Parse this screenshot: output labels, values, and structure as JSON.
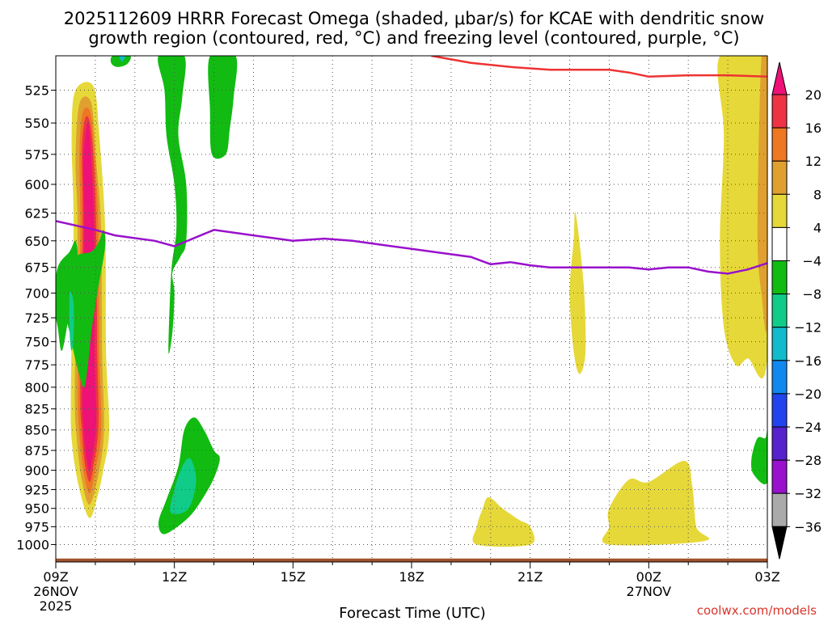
{
  "chart_data": {
    "type": "heatmap",
    "title_line1": "2025112609 HRRR Forecast Omega (shaded, μbar/s) for KCAE with dendritic snow",
    "title_line2": "growth region (contoured, red, °C) and freezing level (contoured, purple, °C)",
    "xlabel": "Forecast Time (UTC)",
    "credit": "coolwx.com/models",
    "x_range_hours": [
      0,
      18
    ],
    "x_ticks": [
      {
        "hour": 0,
        "label": "09Z",
        "label2": "26NOV",
        "label3": "2025"
      },
      {
        "hour": 3,
        "label": "12Z"
      },
      {
        "hour": 6,
        "label": "15Z"
      },
      {
        "hour": 9,
        "label": "18Z"
      },
      {
        "hour": 12,
        "label": "21Z"
      },
      {
        "hour": 15,
        "label": "00Z",
        "label2": "27NOV"
      },
      {
        "hour": 18,
        "label": "03Z"
      }
    ],
    "y_range_hpa": [
      1025,
      500
    ],
    "y_ticks": [
      "525",
      "550",
      "575",
      "600",
      "625",
      "650",
      "675",
      "700",
      "725",
      "750",
      "775",
      "800",
      "825",
      "850",
      "875",
      "900",
      "925",
      "950",
      "975",
      "1000"
    ],
    "colorbar": {
      "labels": [
        "20",
        "16",
        "12",
        "8",
        "4",
        "−4",
        "−8",
        "−12",
        "−16",
        "−20",
        "−24",
        "−28",
        "−32",
        "−36"
      ],
      "colors": [
        "#ee1177",
        "#ee3344",
        "#ee7722",
        "#e0a030",
        "#e6d838",
        "#ffffff",
        "#11bb11",
        "#11cc88",
        "#11bbcc",
        "#1188ee",
        "#2244ee",
        "#5522cc",
        "#9911cc",
        "#aaaaaa",
        "#000000"
      ]
    },
    "omega_shaded_regions": [
      {
        "level": 4,
        "color": "#e6d838",
        "points": [
          [
            0.5,
            525
          ],
          [
            0.95,
            522
          ],
          [
            1.1,
            560
          ],
          [
            1.25,
            640
          ],
          [
            1.27,
            760
          ],
          [
            1.35,
            850
          ],
          [
            1.2,
            900
          ],
          [
            1.05,
            935
          ],
          [
            0.85,
            963
          ],
          [
            0.6,
            925
          ],
          [
            0.42,
            870
          ],
          [
            0.38,
            810
          ],
          [
            0.45,
            640
          ],
          [
            0.4,
            560
          ]
        ]
      },
      {
        "level": 8,
        "color": "#e0a030",
        "points": [
          [
            0.6,
            535
          ],
          [
            0.9,
            535
          ],
          [
            1.02,
            580
          ],
          [
            1.15,
            640
          ],
          [
            1.17,
            760
          ],
          [
            1.22,
            850
          ],
          [
            1.08,
            905
          ],
          [
            0.85,
            945
          ],
          [
            0.65,
            910
          ],
          [
            0.53,
            860
          ],
          [
            0.48,
            800
          ],
          [
            0.55,
            640
          ],
          [
            0.5,
            580
          ]
        ]
      },
      {
        "level": 12,
        "color": "#ee7722",
        "points": [
          [
            0.68,
            542
          ],
          [
            0.88,
            542
          ],
          [
            0.98,
            575
          ],
          [
            1.08,
            640
          ],
          [
            1.1,
            760
          ],
          [
            1.15,
            850
          ],
          [
            1.0,
            900
          ],
          [
            0.85,
            930
          ],
          [
            0.7,
            900
          ],
          [
            0.6,
            855
          ],
          [
            0.56,
            800
          ],
          [
            0.62,
            640
          ],
          [
            0.6,
            575
          ]
        ]
      },
      {
        "level": 16,
        "color": "#ee3344",
        "points": [
          [
            0.73,
            548
          ],
          [
            0.85,
            548
          ],
          [
            0.95,
            575
          ],
          [
            1.02,
            640
          ],
          [
            1.05,
            760
          ],
          [
            1.08,
            845
          ],
          [
            0.95,
            895
          ],
          [
            0.85,
            915
          ],
          [
            0.73,
            890
          ],
          [
            0.66,
            850
          ],
          [
            0.62,
            800
          ],
          [
            0.68,
            640
          ],
          [
            0.66,
            575
          ]
        ]
      },
      {
        "level": 20,
        "color": "#ee1177",
        "points": [
          [
            0.78,
            553
          ],
          [
            0.84,
            553
          ],
          [
            0.9,
            580
          ],
          [
            0.97,
            640
          ],
          [
            0.98,
            760
          ],
          [
            1.02,
            840
          ],
          [
            0.92,
            885
          ],
          [
            0.85,
            900
          ],
          [
            0.76,
            880
          ],
          [
            0.7,
            845
          ],
          [
            0.67,
            800
          ],
          [
            0.72,
            640
          ],
          [
            0.7,
            580
          ]
        ]
      },
      {
        "level": -4,
        "color": "#11bb11",
        "points": [
          [
            -0.1,
            700
          ],
          [
            0.1,
            690
          ],
          [
            0.5,
            665
          ],
          [
            0.9,
            660
          ],
          [
            1.1,
            650
          ],
          [
            1.2,
            640
          ],
          [
            1.25,
            655
          ],
          [
            1.05,
            700
          ],
          [
            0.9,
            740
          ],
          [
            0.8,
            780
          ],
          [
            0.7,
            800
          ],
          [
            0.5,
            770
          ],
          [
            0.35,
            740
          ],
          [
            0.2,
            720
          ]
        ]
      },
      {
        "level": -4,
        "color": "#11bb11",
        "points": [
          [
            0.05,
            675
          ],
          [
            0.35,
            660
          ],
          [
            0.5,
            650
          ],
          [
            0.55,
            670
          ],
          [
            0.4,
            700
          ],
          [
            0.3,
            730
          ],
          [
            0.15,
            760
          ],
          [
            0.05,
            735
          ],
          [
            -0.05,
            710
          ]
        ]
      },
      {
        "level": -8,
        "color": "#11cc88",
        "points": [
          [
            0.35,
            700
          ],
          [
            0.45,
            710
          ],
          [
            0.45,
            745
          ],
          [
            0.4,
            760
          ],
          [
            0.35,
            740
          ]
        ]
      },
      {
        "level": -4,
        "color": "#11bb11",
        "points": [
          [
            1.45,
            500
          ],
          [
            1.88,
            500
          ],
          [
            1.8,
            506
          ],
          [
            1.55,
            508
          ],
          [
            1.4,
            505
          ]
        ]
      },
      {
        "level": -8,
        "color": "#11bbcc",
        "points": [
          [
            1.6,
            500
          ],
          [
            1.75,
            500
          ],
          [
            1.68,
            504
          ]
        ]
      },
      {
        "level": -4,
        "color": "#11bb11",
        "points": [
          [
            2.6,
            500
          ],
          [
            3.25,
            500
          ],
          [
            3.2,
            530
          ],
          [
            3.1,
            560
          ],
          [
            3.3,
            600
          ],
          [
            3.3,
            650
          ],
          [
            3.15,
            665
          ],
          [
            2.95,
            680
          ],
          [
            3.0,
            700
          ],
          [
            2.95,
            740
          ],
          [
            2.85,
            760
          ],
          [
            2.92,
            680
          ],
          [
            3.05,
            640
          ],
          [
            3.0,
            600
          ],
          [
            2.8,
            560
          ],
          [
            2.75,
            525
          ]
        ]
      },
      {
        "level": -4,
        "color": "#11bb11",
        "points": [
          [
            3.9,
            500
          ],
          [
            4.55,
            500
          ],
          [
            4.5,
            530
          ],
          [
            4.4,
            555
          ],
          [
            4.3,
            575
          ],
          [
            3.95,
            575
          ],
          [
            3.9,
            540
          ]
        ]
      },
      {
        "level": -4,
        "color": "#11bb11",
        "points": [
          [
            2.6,
            968
          ],
          [
            2.8,
            938
          ],
          [
            3.1,
            895
          ],
          [
            3.25,
            850
          ],
          [
            3.5,
            835
          ],
          [
            3.75,
            850
          ],
          [
            4.0,
            875
          ],
          [
            4.15,
            885
          ],
          [
            4.0,
            910
          ],
          [
            3.7,
            938
          ],
          [
            3.4,
            960
          ],
          [
            3.0,
            978
          ],
          [
            2.7,
            985
          ]
        ]
      },
      {
        "level": -8,
        "color": "#11cc88",
        "points": [
          [
            2.9,
            955
          ],
          [
            3.0,
            925
          ],
          [
            3.2,
            895
          ],
          [
            3.4,
            885
          ],
          [
            3.55,
            910
          ],
          [
            3.45,
            940
          ],
          [
            3.25,
            955
          ]
        ]
      },
      {
        "level": 4,
        "color": "#e6d838",
        "points": [
          [
            10.65,
            975
          ],
          [
            10.8,
            950
          ],
          [
            10.95,
            935
          ],
          [
            11.3,
            950
          ],
          [
            11.7,
            965
          ],
          [
            12.0,
            975
          ],
          [
            12.0,
            1000
          ],
          [
            10.65,
            1000
          ]
        ]
      },
      {
        "level": 4,
        "color": "#e6d838",
        "points": [
          [
            13.15,
            625
          ],
          [
            13.35,
            690
          ],
          [
            13.4,
            760
          ],
          [
            13.25,
            785
          ],
          [
            13.1,
            760
          ],
          [
            13.0,
            700
          ],
          [
            13.1,
            650
          ]
        ]
      },
      {
        "level": 4,
        "color": "#e6d838",
        "points": [
          [
            14.0,
            950
          ],
          [
            14.5,
            912
          ],
          [
            15.0,
            915
          ],
          [
            15.9,
            888
          ],
          [
            16.1,
            920
          ],
          [
            16.2,
            975
          ],
          [
            16.4,
            995
          ],
          [
            14.0,
            1000
          ],
          [
            14.0,
            975
          ]
        ]
      },
      {
        "level": 4,
        "color": "#e6d838",
        "points": [
          [
            16.8,
            500
          ],
          [
            18.0,
            500
          ],
          [
            18.0,
            765
          ],
          [
            17.5,
            768
          ],
          [
            17.2,
            775
          ],
          [
            16.9,
            735
          ],
          [
            16.8,
            650
          ],
          [
            16.9,
            560
          ]
        ]
      },
      {
        "level": 8,
        "color": "#e0a030",
        "points": [
          [
            17.85,
            500
          ],
          [
            18.0,
            500
          ],
          [
            18.0,
            725
          ],
          [
            17.85,
            700
          ],
          [
            17.75,
            640
          ]
        ]
      },
      {
        "level": -4,
        "color": "#11bb11",
        "points": [
          [
            17.95,
            860
          ],
          [
            18.0,
            850
          ],
          [
            18.0,
            915
          ],
          [
            17.65,
            905
          ],
          [
            17.6,
            885
          ],
          [
            17.75,
            860
          ]
        ]
      }
    ],
    "series": [
      {
        "name": "Freezing level (0 °C)",
        "color": "#9911cc",
        "points": [
          [
            0,
            632
          ],
          [
            1,
            640
          ],
          [
            1.5,
            645
          ],
          [
            2.5,
            650
          ],
          [
            3.0,
            655
          ],
          [
            4.0,
            640
          ],
          [
            5.0,
            645
          ],
          [
            6.0,
            650
          ],
          [
            6.8,
            648
          ],
          [
            7.5,
            650
          ],
          [
            8.5,
            655
          ],
          [
            9.5,
            660
          ],
          [
            10.5,
            665
          ],
          [
            11.0,
            672
          ],
          [
            11.5,
            670
          ],
          [
            12.0,
            673
          ],
          [
            12.5,
            675
          ],
          [
            13.0,
            675
          ],
          [
            13.5,
            675
          ],
          [
            14.5,
            675
          ],
          [
            15.0,
            677
          ],
          [
            15.5,
            675
          ],
          [
            16.0,
            675
          ],
          [
            16.5,
            679
          ],
          [
            17.0,
            681
          ],
          [
            17.5,
            677
          ],
          [
            18.0,
            671
          ]
        ]
      },
      {
        "name": "Dendritic snow growth region (red)",
        "color": "#ee3333",
        "points": [
          [
            9.5,
            500
          ],
          [
            10.5,
            505
          ],
          [
            11.5,
            508
          ],
          [
            12.5,
            510
          ],
          [
            14.0,
            510
          ],
          [
            14.5,
            512
          ],
          [
            15.0,
            515
          ],
          [
            16.0,
            514
          ],
          [
            17.0,
            514
          ],
          [
            18.0,
            515
          ]
        ]
      }
    ],
    "ground": {
      "level_hpa_top": 1020,
      "color": "#a0522d"
    }
  }
}
